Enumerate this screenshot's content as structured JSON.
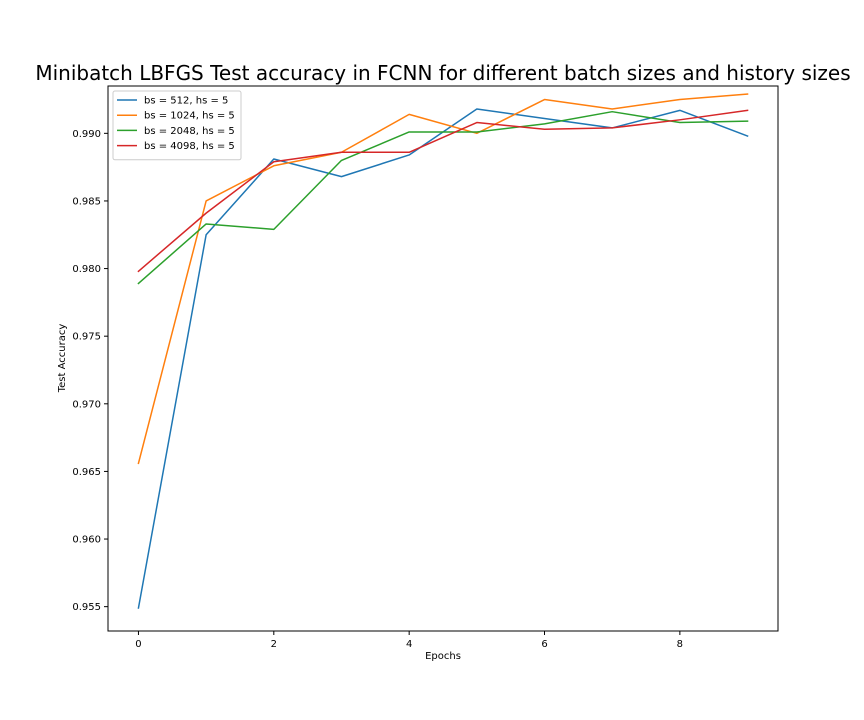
{
  "chart_data": {
    "type": "line",
    "title": "Minibatch LBFGS Test accuracy in FCNN for different batch sizes and history sizes",
    "xlabel": "Epochs",
    "ylabel": "Test Accuracy",
    "xlim": [
      -0.45,
      9.45
    ],
    "ylim": [
      0.9532,
      0.9935
    ],
    "x_ticks": [
      0,
      2,
      4,
      6,
      8
    ],
    "x_tick_labels": [
      "0",
      "2",
      "4",
      "6",
      "8"
    ],
    "y_ticks": [
      0.955,
      0.96,
      0.965,
      0.97,
      0.975,
      0.98,
      0.985,
      0.99
    ],
    "y_tick_labels": [
      "0.955",
      "0.960",
      "0.965",
      "0.970",
      "0.975",
      "0.980",
      "0.985",
      "0.990"
    ],
    "grid": false,
    "legend_position": "upper-left",
    "x": [
      0,
      1,
      2,
      3,
      4,
      5,
      6,
      7,
      8,
      9
    ],
    "series": [
      {
        "name": "bs = 512, hs = 5",
        "color": "#1f77b4",
        "values": [
          0.9549,
          0.9825,
          0.9881,
          0.9868,
          0.9884,
          0.9918,
          0.9911,
          0.9904,
          0.9917,
          0.9898
        ]
      },
      {
        "name": "bs = 1024, hs = 5",
        "color": "#ff7f0e",
        "values": [
          0.9656,
          0.985,
          0.9876,
          0.9886,
          0.9914,
          0.99,
          0.9925,
          0.9918,
          0.9925,
          0.9929
        ]
      },
      {
        "name": "bs = 2048, hs = 5",
        "color": "#2ca02c",
        "values": [
          0.9789,
          0.9833,
          0.9829,
          0.988,
          0.9901,
          0.9901,
          0.9907,
          0.9916,
          0.9908,
          0.9909
        ]
      },
      {
        "name": "bs = 4098, hs = 5",
        "color": "#d62728",
        "values": [
          0.9798,
          0.9841,
          0.9879,
          0.9886,
          0.9886,
          0.9908,
          0.9903,
          0.9904,
          0.991,
          0.9917
        ]
      }
    ]
  }
}
